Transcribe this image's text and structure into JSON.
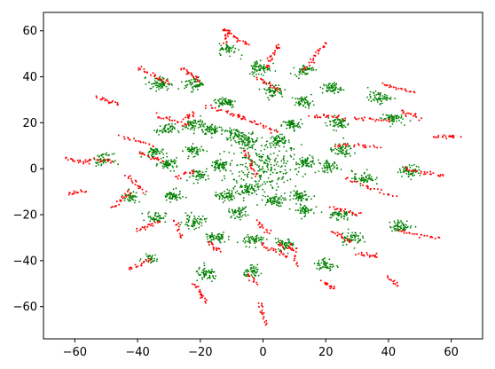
{
  "chart_data": {
    "type": "scatter",
    "title": "",
    "xlabel": "",
    "ylabel": "",
    "xlim": [
      -70,
      70
    ],
    "ylim": [
      -74,
      68
    ],
    "xticks": [
      -60,
      -40,
      -20,
      0,
      20,
      40,
      60
    ],
    "yticks": [
      -60,
      -40,
      -20,
      0,
      20,
      40,
      60
    ],
    "grid": false,
    "legend": "none",
    "colors": {
      "green": "#008000",
      "red": "#ff0000"
    },
    "series": [
      {
        "color": "green",
        "clusters": [
          [
            0,
            0,
            10,
            10,
            240
          ],
          [
            -5,
            12,
            3,
            2.5,
            70
          ],
          [
            5,
            12,
            3,
            2.5,
            70
          ],
          [
            -14,
            1,
            2.5,
            2,
            60
          ],
          [
            14,
            3,
            2.5,
            2,
            60
          ],
          [
            -9,
            15,
            3,
            2,
            60
          ],
          [
            9,
            19,
            2.5,
            2,
            60
          ],
          [
            -16,
            17,
            3,
            2,
            60
          ],
          [
            -5,
            -9,
            2.5,
            2,
            60
          ],
          [
            3,
            -14,
            3,
            2,
            60
          ],
          [
            -12,
            -12,
            2.5,
            2,
            60
          ],
          [
            12,
            -12,
            2.5,
            2,
            60
          ],
          [
            -8,
            -19,
            2.5,
            2,
            50
          ],
          [
            13,
            -18,
            2.5,
            2,
            50
          ],
          [
            -20,
            -3,
            2.5,
            2,
            50
          ],
          [
            21,
            1,
            2.5,
            2,
            50
          ],
          [
            -22,
            8,
            2.5,
            2,
            50
          ],
          [
            -22,
            19,
            3,
            2.5,
            60
          ],
          [
            -30,
            2,
            2.5,
            2,
            60
          ],
          [
            -29,
            -12,
            2.5,
            2,
            60
          ],
          [
            -22,
            -23,
            3,
            2.5,
            60
          ],
          [
            -34,
            -21,
            2.5,
            2,
            50
          ],
          [
            -35,
            7,
            2.5,
            2,
            50
          ],
          [
            -31,
            17,
            2.5,
            2,
            50
          ],
          [
            -33,
            37,
            3,
            2.5,
            70
          ],
          [
            -22,
            37,
            2.5,
            2.5,
            60
          ],
          [
            -12,
            29,
            3,
            2,
            60
          ],
          [
            -11,
            52,
            2.5,
            2,
            50
          ],
          [
            -1,
            44,
            3,
            3,
            70
          ],
          [
            3,
            34,
            3,
            2.5,
            60
          ],
          [
            13,
            43,
            2.5,
            2,
            50
          ],
          [
            13,
            29,
            2.5,
            2,
            50
          ],
          [
            22,
            35,
            2.5,
            2,
            60
          ],
          [
            37,
            31,
            3,
            2,
            60
          ],
          [
            41,
            22,
            3,
            2,
            60
          ],
          [
            24,
            20,
            3,
            2.5,
            60
          ],
          [
            25,
            8,
            3,
            2.5,
            60
          ],
          [
            32,
            -4,
            3,
            2.5,
            60
          ],
          [
            47,
            -1,
            3,
            2,
            60
          ],
          [
            44,
            -25,
            3,
            2,
            60
          ],
          [
            28,
            -30,
            3,
            2.5,
            60
          ],
          [
            24,
            -20,
            3,
            2,
            50
          ],
          [
            20,
            -42,
            2.5,
            2.5,
            50
          ],
          [
            7,
            -33,
            2.5,
            2,
            60
          ],
          [
            -3,
            -31,
            3,
            2,
            60
          ],
          [
            -3,
            -45,
            2.5,
            2,
            50
          ],
          [
            -18,
            -46,
            3,
            2.5,
            60
          ],
          [
            -15,
            -30,
            3,
            2,
            60
          ],
          [
            -36,
            -39,
            2,
            1.5,
            30
          ],
          [
            -42,
            -12,
            2.5,
            2,
            40
          ],
          [
            -51,
            4,
            2.5,
            2,
            50
          ]
        ]
      },
      {
        "color": "red",
        "segments": [
          [
            -13,
            61,
            -5,
            54,
            25
          ],
          [
            -11,
            60,
            -12,
            55,
            15
          ],
          [
            5,
            54,
            1,
            44,
            25
          ],
          [
            20,
            55,
            13,
            43,
            25
          ],
          [
            -26,
            44,
            -20,
            38,
            25
          ],
          [
            -40,
            44,
            -30,
            37,
            25
          ],
          [
            -53,
            31,
            -46,
            28,
            18
          ],
          [
            -2,
            40,
            5,
            34,
            20
          ],
          [
            -18,
            27,
            -6,
            22,
            25
          ],
          [
            -8,
            23,
            5,
            16,
            28
          ],
          [
            15,
            23,
            26,
            22,
            22
          ],
          [
            29,
            22,
            40,
            21,
            20
          ],
          [
            38,
            37,
            48,
            33,
            20
          ],
          [
            44,
            25,
            50,
            22,
            18
          ],
          [
            55,
            14,
            62,
            14,
            22
          ],
          [
            -34,
            23,
            -24,
            19,
            22
          ],
          [
            -25,
            22,
            -22,
            24,
            12
          ],
          [
            -45,
            14,
            -35,
            10,
            20
          ],
          [
            -40,
            7,
            -32,
            3,
            18
          ],
          [
            23,
            10,
            37,
            10,
            22
          ],
          [
            -63,
            4,
            -55,
            3,
            20
          ],
          [
            -55,
            4,
            -48,
            3,
            15
          ],
          [
            -43,
            -3,
            -38,
            -10,
            18
          ],
          [
            -48,
            -17,
            -42,
            -10,
            20
          ],
          [
            -62,
            -11,
            -57,
            -10,
            15
          ],
          [
            -6,
            8,
            -2,
            -3,
            22
          ],
          [
            -28,
            -4,
            -22,
            -1,
            15
          ],
          [
            45,
            0,
            58,
            -3,
            25
          ],
          [
            26,
            -4,
            42,
            -12,
            25
          ],
          [
            22,
            -17,
            31,
            -20,
            20
          ],
          [
            -40,
            -27,
            -33,
            -23,
            20
          ],
          [
            -28,
            -22,
            -26,
            -30,
            15
          ],
          [
            -2,
            -23,
            2,
            -28,
            15
          ],
          [
            -17,
            -32,
            -14,
            -36,
            15
          ],
          [
            -1,
            -33,
            8,
            -38,
            22
          ],
          [
            9,
            -33,
            11,
            -42,
            15
          ],
          [
            5,
            -33,
            10,
            -35,
            12
          ],
          [
            19,
            -49,
            23,
            -52,
            15
          ],
          [
            30,
            -37,
            37,
            -38,
            18
          ],
          [
            22,
            -27,
            28,
            -32,
            18
          ],
          [
            43,
            -27,
            56,
            -30,
            22
          ],
          [
            40,
            -47,
            43,
            -51,
            12
          ],
          [
            -43,
            -44,
            -36,
            -40,
            20
          ],
          [
            -22,
            -50,
            -18,
            -58,
            20
          ],
          [
            -5,
            -46,
            -2,
            -50,
            12
          ],
          [
            -1,
            -58,
            1,
            -68,
            18
          ]
        ]
      }
    ]
  }
}
